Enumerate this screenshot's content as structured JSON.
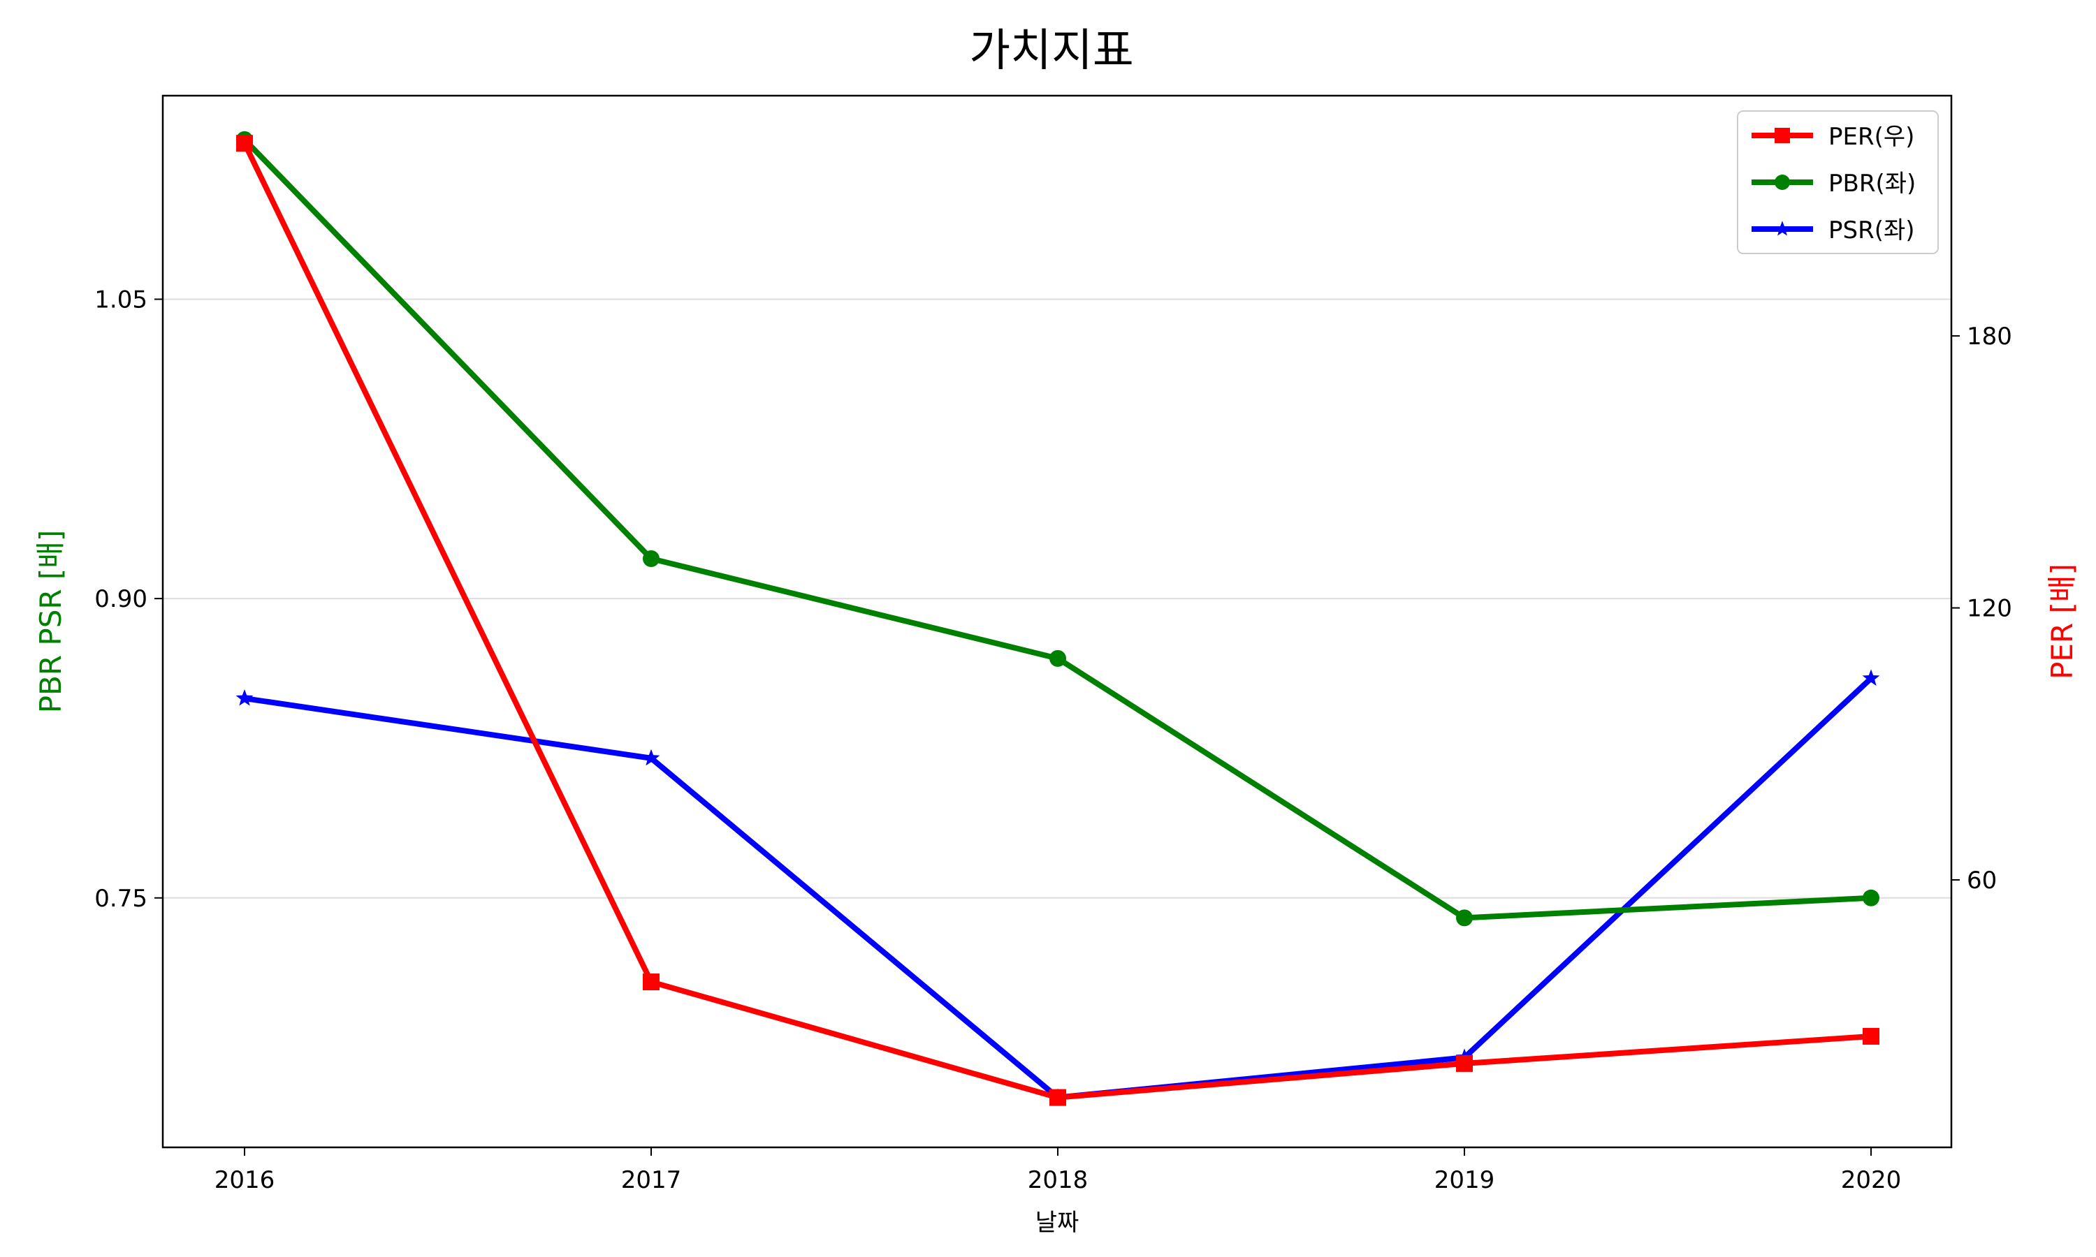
{
  "chart_data": {
    "type": "line",
    "title": "가치지표",
    "xlabel": "날짜",
    "ylabel_left": "PBR PSR [배]",
    "ylabel_right": "PER [배]",
    "categories": [
      "2016",
      "2017",
      "2018",
      "2019",
      "2020"
    ],
    "left_axis": {
      "ylim": [
        0.625,
        1.152
      ],
      "ticks": [
        0.75,
        0.9,
        1.05
      ],
      "tick_labels": [
        "0.75",
        "0.90",
        "1.05"
      ]
    },
    "right_axis": {
      "ylim": [
        1.0,
        233.0
      ],
      "ticks": [
        60,
        120,
        180
      ],
      "tick_labels": [
        "60",
        "120",
        "180"
      ]
    },
    "grid": "horizontal",
    "legend_position": "top-right",
    "series": [
      {
        "name": "PER(우)",
        "axis": "right",
        "marker": "square",
        "color": "#ff0000",
        "values": [
          222.5,
          37.5,
          12.0,
          19.5,
          25.5
        ]
      },
      {
        "name": "PBR(좌)",
        "axis": "left",
        "marker": "circle",
        "color": "#008000",
        "values": [
          1.13,
          0.92,
          0.87,
          0.74,
          0.75
        ]
      },
      {
        "name": "PSR(좌)",
        "axis": "left",
        "marker": "star",
        "color": "#0000ff",
        "values": [
          0.85,
          0.82,
          0.65,
          0.67,
          0.86
        ]
      }
    ],
    "label_colors": {
      "left": "#008000",
      "right": "#ff0000"
    }
  }
}
